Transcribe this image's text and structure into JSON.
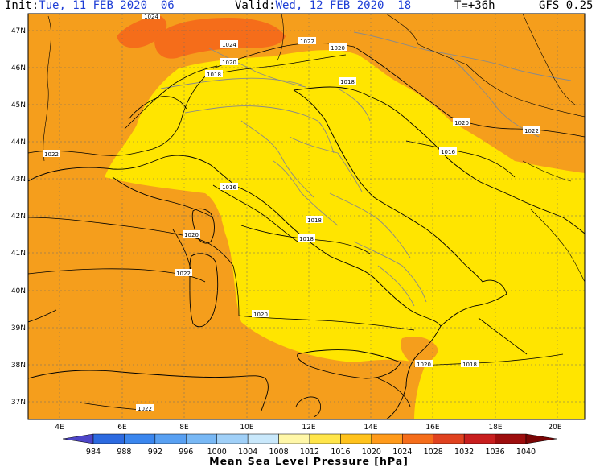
{
  "header": {
    "init_label": "Init:",
    "init_value": "Tue, 11 FEB 2020  06",
    "valid_label": "Valid:",
    "valid_value": "Wed, 12 FEB 2020  18",
    "forecast_step": "T=+36h",
    "model": "GFS 0.25"
  },
  "map": {
    "lat_labels": [
      "47N",
      "46N",
      "45N",
      "44N",
      "43N",
      "42N",
      "41N",
      "40N",
      "39N",
      "38N",
      "37N"
    ],
    "lon_labels": [
      "4E",
      "6E",
      "8E",
      "10E",
      "12E",
      "14E",
      "16E",
      "18E",
      "20E"
    ],
    "isobar_labels": [
      "1024",
      "1024",
      "1022",
      "1020",
      "1020",
      "1018",
      "1018",
      "1022",
      "1020",
      "1016",
      "1022",
      "1016",
      "1018",
      "1018",
      "1020",
      "1022",
      "1020",
      "1020",
      "1018",
      "1022"
    ]
  },
  "colorbar": {
    "title": "Mean Sea Level Pressure [hPa]",
    "labels": [
      "984",
      "988",
      "992",
      "996",
      "1000",
      "1004",
      "1008",
      "1012",
      "1016",
      "1020",
      "1024",
      "1028",
      "1032",
      "1036",
      "1040"
    ],
    "colors": [
      "#4d45c8",
      "#2c6ae0",
      "#3a86ee",
      "#58a0f2",
      "#78b8f5",
      "#a0d0f8",
      "#c9e8fb",
      "#fff7a8",
      "#ffe54a",
      "#ffc21c",
      "#ff9a1a",
      "#f56d1a",
      "#e0421f",
      "#c81e1e",
      "#9d0d0d",
      "#7a0505"
    ]
  },
  "colors": {
    "land_orange": "#f59e1c",
    "yellow_region": "#ffe500",
    "accent_blue": "#1f3fd6"
  }
}
